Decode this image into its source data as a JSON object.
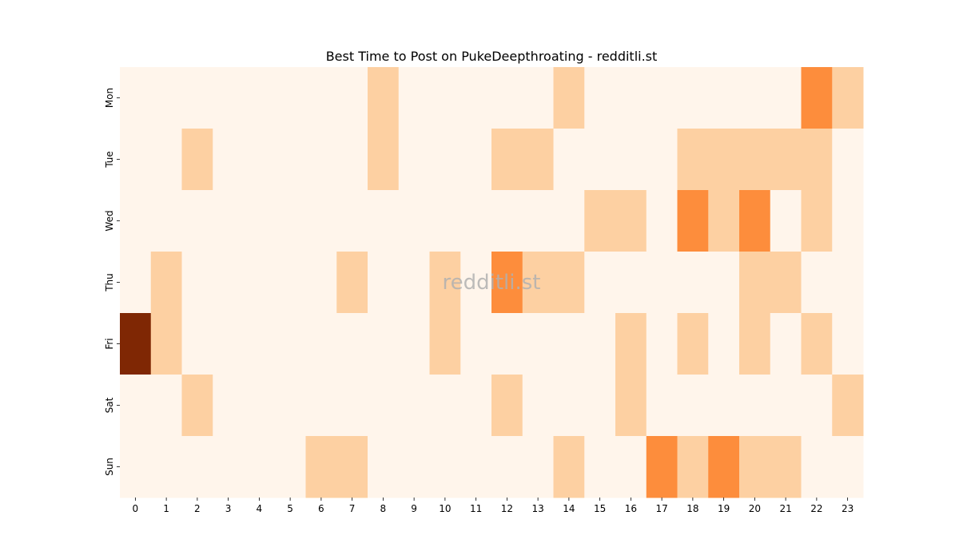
{
  "chart_data": {
    "type": "heatmap",
    "title": "Best Time to Post on PukeDeepthroating - redditli.st",
    "watermark": "redditli.st",
    "x_categories": [
      "0",
      "1",
      "2",
      "3",
      "4",
      "5",
      "6",
      "7",
      "8",
      "9",
      "10",
      "11",
      "12",
      "13",
      "14",
      "15",
      "16",
      "17",
      "18",
      "19",
      "20",
      "21",
      "22",
      "23"
    ],
    "y_categories": [
      "Mon",
      "Tue",
      "Wed",
      "Thu",
      "Fri",
      "Sat",
      "Sun"
    ],
    "colormap": "Oranges",
    "value_range": [
      0,
      4
    ],
    "color_scale": [
      "#fff5eb",
      "#fdd0a2",
      "#fd8d3c",
      "#d94801",
      "#7f2704"
    ],
    "values": [
      [
        0,
        0,
        0,
        0,
        0,
        0,
        0,
        0,
        1,
        0,
        0,
        0,
        0,
        0,
        1,
        0,
        0,
        0,
        0,
        0,
        0,
        0,
        2,
        1
      ],
      [
        0,
        0,
        1,
        0,
        0,
        0,
        0,
        0,
        1,
        0,
        0,
        0,
        1,
        1,
        0,
        0,
        0,
        0,
        1,
        1,
        1,
        1,
        1,
        0
      ],
      [
        0,
        0,
        0,
        0,
        0,
        0,
        0,
        0,
        0,
        0,
        0,
        0,
        0,
        0,
        0,
        1,
        1,
        0,
        2,
        1,
        2,
        0,
        1,
        0
      ],
      [
        0,
        1,
        0,
        0,
        0,
        0,
        0,
        1,
        0,
        0,
        1,
        0,
        2,
        1,
        1,
        0,
        0,
        0,
        0,
        0,
        1,
        1,
        0,
        0
      ],
      [
        4,
        1,
        0,
        0,
        0,
        0,
        0,
        0,
        0,
        0,
        1,
        0,
        0,
        0,
        0,
        0,
        1,
        0,
        1,
        0,
        1,
        0,
        1,
        0
      ],
      [
        0,
        0,
        1,
        0,
        0,
        0,
        0,
        0,
        0,
        0,
        0,
        0,
        1,
        0,
        0,
        0,
        1,
        0,
        0,
        0,
        0,
        0,
        0,
        1
      ],
      [
        0,
        0,
        0,
        0,
        0,
        0,
        1,
        1,
        0,
        0,
        0,
        0,
        0,
        0,
        1,
        0,
        0,
        2,
        1,
        2,
        1,
        1,
        0,
        0
      ]
    ]
  }
}
